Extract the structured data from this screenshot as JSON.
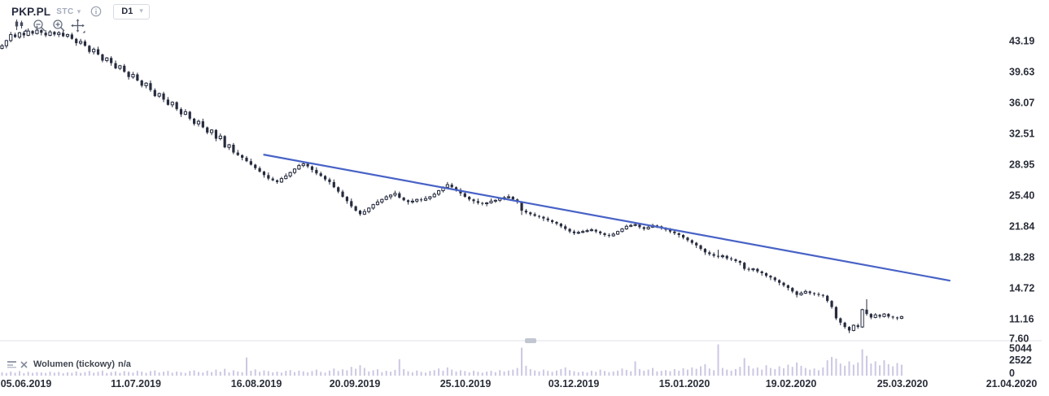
{
  "header": {
    "symbol": "PKP.PL",
    "market_code": "STC",
    "interval": "D1"
  },
  "toolbar": {
    "buttons": [
      "candlestick-chart",
      "zoom-out",
      "zoom-in",
      "pan"
    ]
  },
  "volume_legend": {
    "label": "Wolumen (tickowy)",
    "value": "n/a"
  },
  "colors": {
    "bearish": "#262b3e",
    "bullish_fill": "#ffffff",
    "candle_stroke": "#262b3e",
    "trendline": "#4862c6",
    "volume_bar": "#cdc7e3",
    "axis_text": "#2a2e39",
    "separator": "#dfe1e7",
    "handle": "#c2c6d0",
    "icon_gray": "#6a7183",
    "icon_dark": "#464d5e"
  },
  "chart_data": {
    "type": "candlestick",
    "title": "PKP.PL D1 daily chart with descending trendline",
    "price_axis_ticks": [
      "43.19",
      "39.63",
      "36.07",
      "32.51",
      "28.95",
      "25.40",
      "21.84",
      "18.28",
      "14.72",
      "11.16",
      "7.60"
    ],
    "volume_axis_ticks": [
      "5044",
      "2522",
      "0"
    ],
    "date_axis_ticks": [
      "05.06.2019",
      "11.07.2019",
      "16.08.2019",
      "20.09.2019",
      "25.10.2019",
      "03.12.2019",
      "15.01.2020",
      "19.02.2020",
      "25.03.2020",
      "21.04.2020"
    ],
    "price_range_visible": [
      9.0,
      45.2
    ],
    "trendline": {
      "from_index": 60,
      "from_price": 30.05,
      "to_index": 217,
      "to_price": 15.55
    },
    "candles": [
      [
        42.3,
        42.8,
        42.2,
        42.6
      ],
      [
        42.6,
        43.3,
        42.3,
        43.2
      ],
      [
        43.2,
        44.2,
        43.0,
        43.9
      ],
      [
        43.9,
        44.1,
        43.5,
        43.6
      ],
      [
        43.6,
        44.2,
        43.4,
        44.1
      ],
      [
        44.1,
        44.3,
        43.5,
        43.8
      ],
      [
        43.8,
        44.6,
        43.7,
        44.3
      ],
      [
        44.3,
        44.4,
        43.8,
        44.0
      ],
      [
        44.0,
        44.9,
        43.9,
        44.4
      ],
      [
        44.4,
        44.5,
        43.8,
        44.1
      ],
      [
        44.1,
        44.4,
        43.6,
        43.8
      ],
      [
        43.8,
        44.4,
        43.7,
        44.2
      ],
      [
        44.2,
        44.3,
        43.7,
        43.9
      ],
      [
        43.9,
        44.3,
        43.6,
        44.1
      ],
      [
        44.1,
        44.4,
        43.6,
        43.7
      ],
      [
        43.7,
        44.0,
        43.5,
        43.9
      ],
      [
        43.9,
        44.1,
        43.3,
        43.4
      ],
      [
        43.4,
        43.5,
        42.6,
        42.9
      ],
      [
        42.9,
        43.4,
        42.7,
        43.1
      ],
      [
        43.1,
        43.3,
        42.5,
        42.6
      ],
      [
        42.6,
        42.7,
        41.7,
        41.9
      ],
      [
        41.9,
        42.4,
        41.6,
        42.2
      ],
      [
        42.2,
        42.5,
        41.5,
        41.6
      ],
      [
        41.6,
        41.7,
        40.7,
        40.9
      ],
      [
        40.9,
        41.3,
        40.7,
        41.2
      ],
      [
        41.2,
        41.4,
        40.3,
        40.6
      ],
      [
        40.6,
        40.9,
        39.9,
        40.0
      ],
      [
        40.0,
        40.4,
        39.8,
        40.3
      ],
      [
        40.3,
        40.5,
        39.5,
        39.6
      ],
      [
        39.6,
        39.7,
        38.7,
        39.0
      ],
      [
        39.0,
        39.6,
        38.8,
        39.3
      ],
      [
        39.3,
        39.5,
        38.5,
        38.6
      ],
      [
        38.6,
        38.7,
        37.8,
        38.0
      ],
      [
        38.0,
        38.4,
        37.7,
        38.3
      ],
      [
        38.3,
        38.6,
        37.3,
        37.5
      ],
      [
        37.5,
        37.7,
        36.7,
        36.8
      ],
      [
        36.8,
        37.2,
        36.6,
        37.1
      ],
      [
        37.1,
        37.3,
        36.1,
        36.4
      ],
      [
        36.4,
        36.7,
        35.7,
        35.8
      ],
      [
        35.8,
        36.2,
        35.5,
        36.1
      ],
      [
        36.1,
        36.2,
        35.1,
        35.3
      ],
      [
        35.3,
        35.5,
        34.4,
        34.7
      ],
      [
        34.7,
        35.3,
        34.6,
        35.0
      ],
      [
        35.0,
        35.1,
        34.0,
        34.2
      ],
      [
        34.2,
        34.3,
        33.4,
        33.6
      ],
      [
        33.6,
        34.1,
        33.3,
        33.9
      ],
      [
        33.9,
        34.2,
        33.1,
        33.2
      ],
      [
        33.2,
        33.3,
        32.4,
        32.6
      ],
      [
        32.6,
        33.0,
        32.3,
        32.9
      ],
      [
        32.9,
        33.0,
        31.6,
        31.9
      ],
      [
        31.9,
        32.5,
        31.7,
        32.2
      ],
      [
        32.2,
        32.3,
        30.8,
        30.9
      ],
      [
        30.9,
        31.3,
        30.6,
        31.2
      ],
      [
        31.2,
        31.4,
        30.1,
        30.3
      ],
      [
        30.3,
        30.6,
        29.9,
        30.0
      ],
      [
        30.0,
        30.1,
        29.4,
        29.7
      ],
      [
        29.7,
        29.9,
        29.2,
        29.3
      ],
      [
        29.3,
        29.6,
        28.8,
        28.9
      ],
      [
        28.9,
        29.0,
        28.3,
        28.5
      ],
      [
        28.5,
        28.7,
        28.0,
        28.1
      ],
      [
        28.1,
        28.2,
        27.4,
        27.7
      ],
      [
        27.7,
        28.0,
        27.1,
        27.3
      ],
      [
        27.3,
        27.5,
        27.0,
        27.1
      ],
      [
        27.1,
        27.2,
        26.7,
        26.9
      ],
      [
        26.9,
        27.5,
        26.8,
        27.3
      ],
      [
        27.3,
        27.9,
        27.2,
        27.6
      ],
      [
        27.6,
        28.1,
        27.4,
        28.0
      ],
      [
        28.0,
        28.5,
        27.8,
        28.4
      ],
      [
        28.4,
        29.0,
        28.3,
        28.8
      ],
      [
        28.8,
        29.2,
        28.6,
        29.0
      ],
      [
        29.0,
        29.1,
        28.5,
        28.7
      ],
      [
        28.7,
        28.8,
        28.0,
        28.3
      ],
      [
        28.3,
        28.6,
        27.7,
        27.9
      ],
      [
        27.9,
        28.1,
        27.5,
        27.6
      ],
      [
        27.6,
        27.7,
        27.0,
        27.2
      ],
      [
        27.2,
        27.4,
        26.6,
        26.9
      ],
      [
        26.9,
        27.2,
        26.2,
        26.3
      ],
      [
        26.3,
        26.4,
        25.6,
        25.8
      ],
      [
        25.8,
        26.0,
        25.1,
        25.2
      ],
      [
        25.2,
        25.3,
        24.4,
        24.7
      ],
      [
        24.7,
        25.0,
        23.9,
        24.1
      ],
      [
        24.1,
        24.2,
        23.5,
        23.6
      ],
      [
        23.6,
        23.7,
        23.0,
        23.2
      ],
      [
        23.2,
        23.8,
        23.1,
        23.5
      ],
      [
        23.5,
        24.0,
        23.3,
        23.9
      ],
      [
        23.9,
        24.4,
        23.7,
        24.3
      ],
      [
        24.3,
        24.9,
        24.2,
        24.6
      ],
      [
        24.6,
        25.0,
        24.4,
        24.9
      ],
      [
        24.9,
        25.4,
        24.8,
        25.2
      ],
      [
        25.2,
        25.5,
        24.9,
        25.4
      ],
      [
        25.4,
        25.9,
        25.2,
        25.6
      ],
      [
        25.6,
        25.8,
        25.0,
        25.1
      ],
      [
        25.1,
        25.2,
        24.7,
        24.8
      ],
      [
        24.8,
        24.9,
        24.3,
        24.6
      ],
      [
        24.6,
        25.0,
        24.4,
        24.7
      ],
      [
        24.7,
        25.0,
        24.5,
        24.9
      ],
      [
        24.9,
        25.1,
        24.6,
        24.8
      ],
      [
        24.8,
        25.3,
        24.7,
        25.0
      ],
      [
        25.0,
        25.3,
        24.8,
        25.2
      ],
      [
        25.2,
        25.7,
        25.1,
        25.5
      ],
      [
        25.5,
        26.0,
        25.3,
        25.9
      ],
      [
        25.9,
        26.4,
        25.7,
        26.3
      ],
      [
        26.3,
        26.9,
        26.2,
        26.6
      ],
      [
        26.6,
        26.8,
        26.2,
        26.3
      ],
      [
        26.3,
        26.4,
        25.8,
        26.0
      ],
      [
        26.0,
        26.2,
        25.3,
        25.6
      ],
      [
        25.6,
        25.9,
        25.1,
        25.2
      ],
      [
        25.2,
        25.3,
        24.7,
        24.9
      ],
      [
        24.9,
        25.0,
        24.4,
        24.7
      ],
      [
        24.7,
        25.0,
        24.3,
        24.5
      ],
      [
        24.5,
        24.6,
        24.2,
        24.4
      ],
      [
        24.4,
        24.6,
        24.1,
        24.5
      ],
      [
        24.5,
        25.0,
        24.4,
        24.7
      ],
      [
        24.7,
        24.9,
        24.5,
        24.8
      ],
      [
        24.8,
        25.1,
        24.6,
        25.0
      ],
      [
        25.0,
        25.3,
        24.8,
        25.1
      ],
      [
        25.1,
        25.5,
        25.0,
        25.2
      ],
      [
        25.2,
        25.3,
        24.7,
        24.9
      ],
      [
        24.9,
        25.0,
        24.4,
        24.6
      ],
      [
        24.6,
        24.7,
        23.1,
        23.6
      ],
      [
        23.6,
        23.8,
        23.2,
        23.4
      ],
      [
        23.4,
        23.5,
        23.0,
        23.2
      ],
      [
        23.2,
        23.4,
        22.9,
        23.0
      ],
      [
        23.0,
        23.1,
        22.7,
        22.9
      ],
      [
        22.9,
        23.0,
        22.4,
        22.7
      ],
      [
        22.7,
        22.9,
        22.3,
        22.5
      ],
      [
        22.5,
        22.6,
        22.1,
        22.3
      ],
      [
        22.3,
        22.4,
        21.9,
        22.1
      ],
      [
        22.1,
        22.2,
        21.6,
        21.8
      ],
      [
        21.8,
        22.0,
        21.3,
        21.5
      ],
      [
        21.5,
        21.6,
        21.0,
        21.2
      ],
      [
        21.2,
        21.4,
        20.8,
        21.0
      ],
      [
        21.0,
        21.3,
        20.9,
        21.1
      ],
      [
        21.1,
        21.4,
        21.0,
        21.2
      ],
      [
        21.2,
        21.5,
        21.1,
        21.3
      ],
      [
        21.3,
        21.6,
        21.2,
        21.4
      ],
      [
        21.4,
        21.5,
        21.0,
        21.2
      ],
      [
        21.2,
        21.3,
        20.8,
        21.0
      ],
      [
        21.0,
        21.1,
        20.6,
        20.8
      ],
      [
        20.8,
        21.0,
        20.5,
        20.7
      ],
      [
        20.7,
        21.1,
        20.6,
        20.9
      ],
      [
        20.9,
        21.3,
        20.8,
        21.2
      ],
      [
        21.2,
        21.6,
        21.1,
        21.5
      ],
      [
        21.5,
        22.0,
        21.4,
        21.8
      ],
      [
        21.8,
        22.1,
        21.7,
        21.9
      ],
      [
        21.9,
        22.2,
        21.8,
        22.0
      ],
      [
        22.0,
        22.1,
        21.5,
        21.7
      ],
      [
        21.7,
        21.8,
        21.3,
        21.5
      ],
      [
        21.5,
        21.9,
        21.4,
        21.7
      ],
      [
        21.7,
        22.1,
        21.6,
        21.9
      ],
      [
        21.9,
        22.0,
        21.6,
        21.8
      ],
      [
        21.8,
        21.9,
        21.4,
        21.6
      ],
      [
        21.6,
        21.7,
        21.2,
        21.4
      ],
      [
        21.4,
        21.6,
        21.0,
        21.2
      ],
      [
        21.2,
        21.3,
        20.8,
        21.0
      ],
      [
        21.0,
        21.1,
        20.5,
        20.8
      ],
      [
        20.8,
        20.9,
        20.3,
        20.5
      ],
      [
        20.5,
        20.6,
        20.0,
        20.2
      ],
      [
        20.2,
        20.3,
        19.7,
        19.9
      ],
      [
        19.9,
        20.0,
        19.3,
        19.6
      ],
      [
        19.6,
        19.7,
        19.0,
        19.2
      ],
      [
        19.2,
        19.3,
        18.5,
        18.8
      ],
      [
        18.8,
        19.0,
        18.4,
        18.6
      ],
      [
        18.6,
        18.8,
        18.2,
        18.4
      ],
      [
        18.4,
        19.1,
        18.1,
        18.3
      ],
      [
        18.3,
        18.6,
        18.1,
        18.4
      ],
      [
        18.4,
        18.5,
        17.9,
        18.1
      ],
      [
        18.1,
        18.3,
        17.8,
        18.0
      ],
      [
        18.0,
        18.1,
        17.6,
        17.8
      ],
      [
        17.8,
        17.9,
        17.3,
        17.6
      ],
      [
        17.6,
        17.7,
        16.7,
        16.9
      ],
      [
        16.9,
        17.1,
        16.6,
        16.8
      ],
      [
        16.8,
        17.0,
        16.6,
        16.9
      ],
      [
        16.9,
        17.0,
        16.4,
        16.6
      ],
      [
        16.6,
        16.7,
        16.1,
        16.4
      ],
      [
        16.4,
        16.5,
        15.9,
        16.1
      ],
      [
        16.1,
        16.2,
        15.6,
        15.9
      ],
      [
        15.9,
        16.0,
        15.4,
        15.6
      ],
      [
        15.6,
        15.7,
        15.0,
        15.3
      ],
      [
        15.3,
        15.4,
        14.8,
        15.0
      ],
      [
        15.0,
        15.1,
        14.4,
        14.7
      ],
      [
        14.7,
        14.8,
        14.1,
        14.3
      ],
      [
        14.3,
        14.4,
        13.6,
        13.9
      ],
      [
        13.9,
        14.3,
        13.8,
        14.1
      ],
      [
        14.1,
        14.5,
        14.0,
        14.3
      ],
      [
        14.3,
        14.4,
        13.9,
        14.1
      ],
      [
        14.1,
        14.2,
        13.8,
        14.0
      ],
      [
        14.0,
        14.2,
        13.7,
        13.9
      ],
      [
        13.9,
        14.0,
        13.6,
        13.8
      ],
      [
        13.8,
        13.9,
        13.0,
        13.2
      ],
      [
        13.2,
        13.3,
        12.3,
        12.5
      ],
      [
        12.5,
        12.6,
        11.0,
        11.2
      ],
      [
        11.2,
        11.3,
        10.4,
        10.7
      ],
      [
        10.7,
        10.8,
        10.0,
        10.2
      ],
      [
        10.2,
        10.3,
        9.5,
        9.8
      ],
      [
        9.8,
        10.5,
        9.7,
        10.4
      ],
      [
        10.4,
        10.6,
        10.0,
        10.2
      ],
      [
        10.2,
        12.3,
        10.1,
        12.2
      ],
      [
        12.2,
        13.4,
        11.5,
        11.7
      ],
      [
        11.7,
        11.8,
        11.1,
        11.3
      ],
      [
        11.3,
        11.8,
        11.2,
        11.6
      ],
      [
        11.6,
        11.7,
        11.2,
        11.4
      ],
      [
        11.4,
        11.8,
        11.3,
        11.7
      ],
      [
        11.7,
        11.8,
        11.2,
        11.4
      ],
      [
        11.4,
        11.5,
        11.1,
        11.3
      ],
      [
        11.3,
        11.4,
        11.0,
        11.2
      ],
      [
        11.2,
        11.5,
        11.1,
        11.4
      ]
    ],
    "volumes": [
      620,
      480,
      750,
      540,
      830,
      460,
      700,
      520,
      640,
      580,
      490,
      720,
      560,
      680,
      450,
      610,
      530,
      770,
      500,
      640,
      860,
      540,
      700,
      920,
      480,
      660,
      780,
      520,
      840,
      690,
      560,
      900,
      740,
      510,
      820,
      950,
      600,
      720,
      880,
      540,
      760,
      630,
      500,
      840,
      970,
      680,
      580,
      900,
      650,
      1100,
      720,
      1250,
      590,
      980,
      760,
      640,
      3300,
      870,
      1150,
      700,
      950,
      820,
      600,
      740,
      560,
      880,
      1020,
      650,
      920,
      780,
      600,
      840,
      1100,
      700,
      560,
      920,
      1300,
      850,
      1150,
      980,
      1600,
      1250,
      1900,
      1400,
      760,
      980,
      1150,
      640,
      880,
      720,
      1050,
      3000,
      1200,
      800,
      620,
      940,
      700,
      560,
      860,
      1000,
      1300,
      900,
      1500,
      1100,
      760,
      980,
      840,
      620,
      900,
      700,
      560,
      740,
      880,
      640,
      1000,
      760,
      920,
      1100,
      1400,
      5100,
      1800,
      1200,
      950,
      780,
      1100,
      860,
      700,
      940,
      1200,
      1500,
      1000,
      820,
      640,
      760,
      580,
      900,
      700,
      1100,
      850,
      640,
      780,
      920,
      1300,
      1050,
      800,
      2600,
      1200,
      900,
      1100,
      1400,
      760,
      880,
      1000,
      820,
      1200,
      900,
      1350,
      1100,
      1500,
      1250,
      1700,
      2100,
      1300,
      1000,
      5700,
      1400,
      1100,
      900,
      1200,
      1600,
      3200,
      1800,
      1300,
      1500,
      1100,
      1900,
      1400,
      1200,
      1700,
      1350,
      2000,
      1600,
      2400,
      1800,
      1400,
      1100,
      1300,
      1000,
      1500,
      2800,
      3400,
      3100,
      2200,
      1800,
      2600,
      2000,
      2400,
      4800,
      3600,
      2200,
      2600,
      1900,
      2800,
      2100,
      1700,
      2300,
      2000
    ]
  }
}
